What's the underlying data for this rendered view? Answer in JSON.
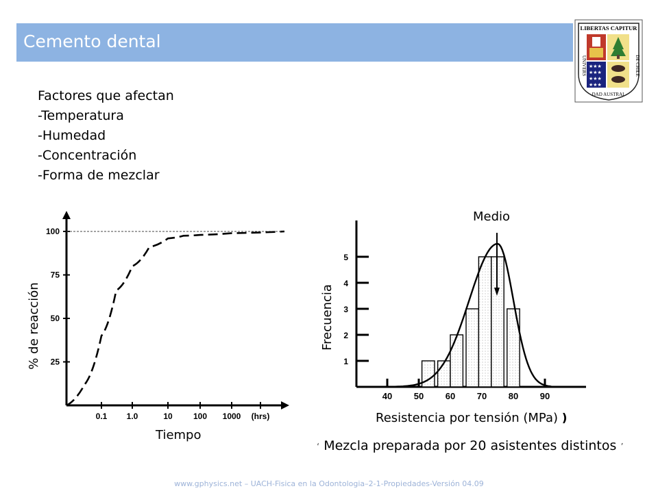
{
  "slide": {
    "title": "Cemento dental",
    "factors": [
      "Factores que afectan",
      "-Temperatura",
      "-Humedad",
      "-Concentración",
      "-Forma de mezclar"
    ],
    "caption": "Mezcla preparada por 20 asistentes distintos",
    "footer": "www.gphysics.net – UACH-Fisica en la Odontologia–2-1-Propiedades-Versión 04.09"
  },
  "logo": {
    "top_text": "LIBERTAS CAPITUR",
    "left_text": "UNIVERS",
    "bottom_text": "DAD AUSTRAL",
    "right_text": "DE CHILE"
  },
  "chart_data": [
    {
      "type": "line",
      "title": "",
      "xlabel": "Tiempo",
      "ylabel": "% de reacción",
      "x_scale": "log",
      "x_tick_labels": [
        "0.1",
        "1.0",
        "10",
        "100",
        "1000",
        "(hrs)"
      ],
      "y_ticks": [
        25,
        50,
        75,
        100
      ],
      "ylim": [
        0,
        100
      ],
      "series": [
        {
          "style": "dashed",
          "x": [
            0.01,
            0.03,
            0.1,
            0.3,
            1,
            3,
            10,
            30,
            100,
            1000,
            10000
          ],
          "y": [
            0,
            12,
            40,
            66,
            80,
            91,
            96,
            97.5,
            98,
            99,
            100
          ]
        }
      ],
      "reference_line": {
        "y": 100,
        "style": "dotted"
      }
    },
    {
      "type": "bar",
      "title": "",
      "xlabel": "Resistencia por tensión (MPa)",
      "xlabel_tail": ")",
      "ylabel": "Frecuencia",
      "x_ticks": [
        40,
        50,
        60,
        70,
        80,
        90
      ],
      "y_ticks": [
        1,
        2,
        3,
        4,
        5
      ],
      "xlim": [
        40,
        90
      ],
      "ylim": [
        0,
        5.5
      ],
      "bins": [
        {
          "x0": 51,
          "x1": 55,
          "value": 1
        },
        {
          "x0": 56,
          "x1": 60,
          "value": 1
        },
        {
          "x0": 60,
          "x1": 64,
          "value": 2
        },
        {
          "x0": 65,
          "x1": 69,
          "value": 3
        },
        {
          "x0": 69,
          "x1": 73,
          "value": 5
        },
        {
          "x0": 73,
          "x1": 77,
          "value": 5
        },
        {
          "x0": 78,
          "x1": 82,
          "value": 3
        }
      ],
      "curve": {
        "type": "normal_fit",
        "mean": 75,
        "peak": 5.5
      },
      "annotation": {
        "text": "Medio",
        "x": 75
      }
    }
  ]
}
